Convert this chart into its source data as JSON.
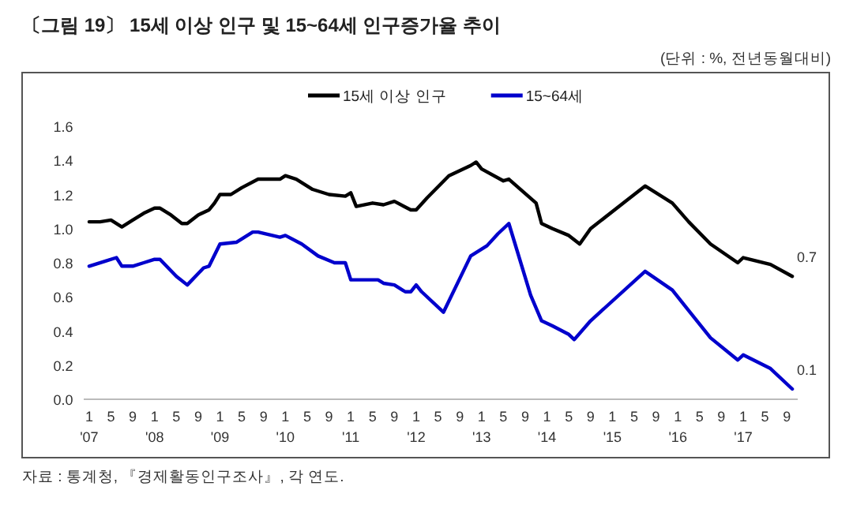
{
  "chart_data": {
    "type": "line",
    "title": "〔그림 19〕 15세 이상 인구 및 15~64세 인구증가율 추이",
    "subtitle": "(단위 : %, 전년동월대비)",
    "legend": "top",
    "xlim": [
      "2006-12",
      "2017-11"
    ],
    "ylim": [
      0,
      1.6
    ],
    "yticks": [
      {
        "value": 0,
        "label": "0.0"
      },
      {
        "value": 0.2,
        "label": "0.2"
      },
      {
        "value": 0.4,
        "label": "0.4"
      },
      {
        "value": 0.6,
        "label": "0.6"
      },
      {
        "value": 0.8,
        "label": "0.8"
      },
      {
        "value": 1,
        "label": "1.0"
      },
      {
        "value": 1.2,
        "label": "1.2"
      },
      {
        "value": 1.4,
        "label": "1.4"
      },
      {
        "value": 1.6,
        "label": "1.6"
      }
    ],
    "xticks": [
      {
        "value": "2007-01",
        "label": "1\n'07"
      },
      {
        "value": "2007-05",
        "label": "5"
      },
      {
        "value": "2007-09",
        "label": "9"
      },
      {
        "value": "2008-01",
        "label": "1\n'08"
      },
      {
        "value": "2008-05",
        "label": "5"
      },
      {
        "value": "2008-09",
        "label": "9"
      },
      {
        "value": "2009-01",
        "label": "1\n'09"
      },
      {
        "value": "2009-05",
        "label": "5"
      },
      {
        "value": "2009-09",
        "label": "9"
      },
      {
        "value": "2010-01",
        "label": "1\n'10"
      },
      {
        "value": "2010-05",
        "label": "5"
      },
      {
        "value": "2010-09",
        "label": "9"
      },
      {
        "value": "2011-01",
        "label": "1\n'11"
      },
      {
        "value": "2011-05",
        "label": "5"
      },
      {
        "value": "2011-09",
        "label": "9"
      },
      {
        "value": "2012-01",
        "label": "1\n'12"
      },
      {
        "value": "2012-05",
        "label": "5"
      },
      {
        "value": "2012-09",
        "label": "9"
      },
      {
        "value": "2013-01",
        "label": "1\n'13"
      },
      {
        "value": "2013-05",
        "label": "5"
      },
      {
        "value": "2013-09",
        "label": "9"
      },
      {
        "value": "2014-01",
        "label": "1\n'14"
      },
      {
        "value": "2014-05",
        "label": "5"
      },
      {
        "value": "2014-09",
        "label": "9"
      },
      {
        "value": "2015-01",
        "label": "1\n'15"
      },
      {
        "value": "2015-05",
        "label": "5"
      },
      {
        "value": "2015-09",
        "label": "9"
      },
      {
        "value": "2016-01",
        "label": "1\n'16"
      },
      {
        "value": "2016-05",
        "label": "5"
      },
      {
        "value": "2016-09",
        "label": "9"
      },
      {
        "value": "2017-01",
        "label": "1\n'17"
      },
      {
        "value": "2017-05",
        "label": "5"
      },
      {
        "value": "2017-09",
        "label": "9"
      }
    ],
    "series": [
      {
        "name": "15세 이상 인구",
        "color": "#000000",
        "x": [
          "2007-01",
          "2007-03",
          "2007-05",
          "2007-07",
          "2007-09",
          "2007-11",
          "2008-01",
          "2008-02",
          "2008-04",
          "2008-06",
          "2008-07",
          "2008-09",
          "2008-11",
          "2008-12",
          "2009-01",
          "2009-03",
          "2009-05",
          "2009-08",
          "2009-12",
          "2010-01",
          "2010-03",
          "2010-06",
          "2010-09",
          "2010-12",
          "2011-01",
          "2011-02",
          "2011-05",
          "2011-07",
          "2011-09",
          "2011-12",
          "2012-01",
          "2012-03",
          "2012-07",
          "2012-11",
          "2012-12",
          "2013-01",
          "2013-05",
          "2013-06",
          "2013-11",
          "2013-12",
          "2014-02",
          "2014-05",
          "2014-07",
          "2014-09",
          "2015-07",
          "2015-12",
          "2016-03",
          "2016-07",
          "2016-12",
          "2017-01",
          "2017-06",
          "2017-10"
        ],
        "values": [
          1.04,
          1.04,
          1.05,
          1.01,
          1.05,
          1.09,
          1.12,
          1.12,
          1.08,
          1.03,
          1.03,
          1.08,
          1.11,
          1.15,
          1.2,
          1.2,
          1.24,
          1.29,
          1.29,
          1.31,
          1.29,
          1.23,
          1.2,
          1.19,
          1.21,
          1.13,
          1.15,
          1.14,
          1.16,
          1.11,
          1.11,
          1.18,
          1.31,
          1.37,
          1.39,
          1.35,
          1.28,
          1.29,
          1.15,
          1.03,
          1.0,
          0.96,
          0.91,
          1.0,
          1.25,
          1.15,
          1.04,
          0.91,
          0.8,
          0.83,
          0.79,
          0.72
        ]
      },
      {
        "name": "15~64세",
        "color": "#0000cc",
        "x": [
          "2007-01",
          "2007-04",
          "2007-06",
          "2007-07",
          "2007-09",
          "2007-11",
          "2008-01",
          "2008-02",
          "2008-05",
          "2008-07",
          "2008-10",
          "2008-11",
          "2009-01",
          "2009-04",
          "2009-07",
          "2009-08",
          "2009-12",
          "2010-01",
          "2010-04",
          "2010-07",
          "2010-10",
          "2010-12",
          "2011-01",
          "2011-03",
          "2011-06",
          "2011-07",
          "2011-09",
          "2011-11",
          "2011-12",
          "2012-01",
          "2012-02",
          "2012-06",
          "2012-11",
          "2013-02",
          "2013-04",
          "2013-06",
          "2013-10",
          "2013-12",
          "2014-02",
          "2014-05",
          "2014-06",
          "2014-09",
          "2015-07",
          "2015-12",
          "2016-03",
          "2016-07",
          "2016-12",
          "2017-01",
          "2017-06",
          "2017-10"
        ],
        "values": [
          0.78,
          0.81,
          0.83,
          0.78,
          0.78,
          0.8,
          0.82,
          0.82,
          0.72,
          0.67,
          0.77,
          0.78,
          0.91,
          0.92,
          0.98,
          0.98,
          0.95,
          0.96,
          0.91,
          0.84,
          0.8,
          0.8,
          0.7,
          0.7,
          0.7,
          0.68,
          0.67,
          0.63,
          0.63,
          0.67,
          0.63,
          0.51,
          0.84,
          0.9,
          0.97,
          1.03,
          0.61,
          0.46,
          0.43,
          0.38,
          0.35,
          0.46,
          0.75,
          0.64,
          0.52,
          0.36,
          0.23,
          0.26,
          0.18,
          0.06
        ]
      }
    ],
    "annotations": [
      {
        "text": "0.7",
        "x": "2017-10",
        "y": 0.72
      },
      {
        "text": "0.1",
        "x": "2017-10",
        "y": 0.06
      },
      "자료 : 통계청, 『경제활동인구조사』, 각 연도."
    ]
  }
}
